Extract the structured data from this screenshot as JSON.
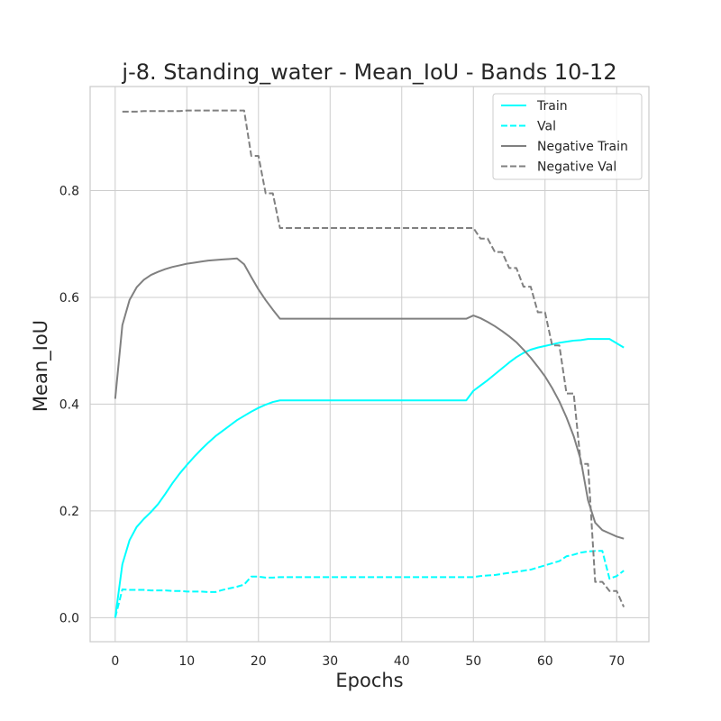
{
  "chart_data": {
    "type": "line",
    "title": "j-8. Standing_water - Mean_IoU - Bands 10-12",
    "xlabel": "Epochs",
    "ylabel": "Mean_IoU",
    "xlim": [
      -3.5,
      74.5
    ],
    "ylim": [
      -0.045,
      0.995
    ],
    "xticks": [
      0,
      10,
      20,
      30,
      40,
      50,
      60,
      70
    ],
    "yticks": [
      0.0,
      0.2,
      0.4,
      0.6,
      0.8
    ],
    "ytick_labels": [
      "0.0",
      "0.2",
      "0.4",
      "0.6",
      "0.8"
    ],
    "grid": true,
    "legend_position": "top-right",
    "series": [
      {
        "name": "Train",
        "color": "#00ffff",
        "dash": "solid",
        "x": [
          0,
          1,
          2,
          3,
          4,
          5,
          6,
          7,
          8,
          9,
          10,
          11,
          12,
          13,
          14,
          15,
          16,
          17,
          18,
          19,
          20,
          21,
          22,
          23,
          24,
          25,
          26,
          27,
          28,
          29,
          30,
          31,
          32,
          33,
          34,
          35,
          36,
          37,
          38,
          39,
          40,
          41,
          42,
          43,
          44,
          45,
          46,
          47,
          48,
          49,
          50,
          51,
          52,
          53,
          54,
          55,
          56,
          57,
          58,
          59,
          60,
          61,
          62,
          63,
          64,
          65,
          66,
          67,
          68,
          69,
          70,
          71
        ],
        "y": [
          0.0,
          0.1,
          0.145,
          0.17,
          0.185,
          0.198,
          0.213,
          0.232,
          0.252,
          0.27,
          0.286,
          0.301,
          0.315,
          0.328,
          0.34,
          0.35,
          0.36,
          0.37,
          0.378,
          0.386,
          0.393,
          0.399,
          0.404,
          0.407,
          0.407,
          0.407,
          0.407,
          0.407,
          0.407,
          0.407,
          0.407,
          0.407,
          0.407,
          0.407,
          0.407,
          0.407,
          0.407,
          0.407,
          0.407,
          0.407,
          0.407,
          0.407,
          0.407,
          0.407,
          0.407,
          0.407,
          0.407,
          0.407,
          0.407,
          0.407,
          0.425,
          0.435,
          0.445,
          0.456,
          0.467,
          0.478,
          0.488,
          0.496,
          0.502,
          0.506,
          0.509,
          0.512,
          0.515,
          0.517,
          0.519,
          0.52,
          0.522,
          0.522,
          0.522,
          0.522,
          0.514,
          0.506
        ]
      },
      {
        "name": "Val",
        "color": "#00ffff",
        "dash": "dashed",
        "x": [
          0,
          1,
          2,
          3,
          4,
          5,
          6,
          7,
          8,
          9,
          10,
          11,
          12,
          13,
          14,
          15,
          16,
          17,
          18,
          19,
          20,
          21,
          22,
          23,
          24,
          25,
          26,
          27,
          28,
          29,
          30,
          31,
          32,
          33,
          34,
          35,
          36,
          37,
          38,
          39,
          40,
          41,
          42,
          43,
          44,
          45,
          46,
          47,
          48,
          49,
          50,
          51,
          52,
          53,
          54,
          55,
          56,
          57,
          58,
          59,
          60,
          61,
          62,
          63,
          64,
          65,
          66,
          67,
          68,
          69,
          70,
          71
        ],
        "y": [
          0.0,
          0.053,
          0.052,
          0.052,
          0.052,
          0.051,
          0.051,
          0.051,
          0.05,
          0.05,
          0.049,
          0.049,
          0.049,
          0.048,
          0.048,
          0.052,
          0.055,
          0.058,
          0.062,
          0.077,
          0.077,
          0.075,
          0.075,
          0.076,
          0.076,
          0.076,
          0.076,
          0.076,
          0.076,
          0.076,
          0.076,
          0.076,
          0.076,
          0.076,
          0.076,
          0.076,
          0.076,
          0.076,
          0.076,
          0.076,
          0.076,
          0.076,
          0.076,
          0.076,
          0.076,
          0.076,
          0.076,
          0.076,
          0.076,
          0.076,
          0.076,
          0.078,
          0.079,
          0.08,
          0.082,
          0.084,
          0.086,
          0.088,
          0.09,
          0.094,
          0.098,
          0.102,
          0.106,
          0.115,
          0.118,
          0.122,
          0.124,
          0.125,
          0.125,
          0.073,
          0.078,
          0.088
        ]
      },
      {
        "name": "Negative Train",
        "color": "#808080",
        "dash": "solid",
        "x": [
          0,
          1,
          2,
          3,
          4,
          5,
          6,
          7,
          8,
          9,
          10,
          11,
          12,
          13,
          14,
          15,
          16,
          17,
          18,
          19,
          20,
          21,
          22,
          23,
          24,
          25,
          26,
          27,
          28,
          29,
          30,
          31,
          32,
          33,
          34,
          35,
          36,
          37,
          38,
          39,
          40,
          41,
          42,
          43,
          44,
          45,
          46,
          47,
          48,
          49,
          50,
          51,
          52,
          53,
          54,
          55,
          56,
          57,
          58,
          59,
          60,
          61,
          62,
          63,
          64,
          65,
          66,
          67,
          68,
          69,
          70,
          71
        ],
        "y": [
          0.41,
          0.548,
          0.595,
          0.619,
          0.633,
          0.642,
          0.648,
          0.653,
          0.657,
          0.66,
          0.663,
          0.665,
          0.667,
          0.669,
          0.67,
          0.671,
          0.672,
          0.673,
          0.662,
          0.638,
          0.615,
          0.595,
          0.577,
          0.56,
          0.56,
          0.56,
          0.56,
          0.56,
          0.56,
          0.56,
          0.56,
          0.56,
          0.56,
          0.56,
          0.56,
          0.56,
          0.56,
          0.56,
          0.56,
          0.56,
          0.56,
          0.56,
          0.56,
          0.56,
          0.56,
          0.56,
          0.56,
          0.56,
          0.56,
          0.56,
          0.566,
          0.561,
          0.554,
          0.546,
          0.537,
          0.527,
          0.516,
          0.502,
          0.487,
          0.47,
          0.452,
          0.43,
          0.405,
          0.375,
          0.34,
          0.295,
          0.22,
          0.178,
          0.164,
          0.158,
          0.152,
          0.148
        ]
      },
      {
        "name": "Negative Val",
        "color": "#808080",
        "dash": "dashed",
        "x": [
          1,
          2,
          3,
          4,
          5,
          6,
          7,
          8,
          9,
          10,
          11,
          12,
          13,
          14,
          15,
          16,
          17,
          18,
          19,
          20,
          21,
          22,
          23,
          24,
          25,
          26,
          27,
          28,
          29,
          30,
          31,
          32,
          33,
          34,
          35,
          36,
          37,
          38,
          39,
          40,
          41,
          42,
          43,
          44,
          45,
          46,
          47,
          48,
          49,
          50,
          51,
          52,
          53,
          54,
          55,
          56,
          57,
          58,
          59,
          60,
          61,
          62,
          63,
          64,
          65,
          66,
          67,
          68,
          69,
          70,
          71
        ],
        "y": [
          0.948,
          0.948,
          0.948,
          0.949,
          0.949,
          0.949,
          0.949,
          0.949,
          0.949,
          0.95,
          0.95,
          0.95,
          0.95,
          0.95,
          0.95,
          0.95,
          0.95,
          0.95,
          0.865,
          0.865,
          0.795,
          0.795,
          0.73,
          0.73,
          0.73,
          0.73,
          0.73,
          0.73,
          0.73,
          0.73,
          0.73,
          0.73,
          0.73,
          0.73,
          0.73,
          0.73,
          0.73,
          0.73,
          0.73,
          0.73,
          0.73,
          0.73,
          0.73,
          0.73,
          0.73,
          0.73,
          0.73,
          0.73,
          0.73,
          0.73,
          0.71,
          0.71,
          0.685,
          0.685,
          0.655,
          0.655,
          0.62,
          0.62,
          0.572,
          0.572,
          0.51,
          0.51,
          0.42,
          0.42,
          0.288,
          0.288,
          0.067,
          0.067,
          0.05,
          0.05,
          0.02
        ]
      }
    ]
  }
}
